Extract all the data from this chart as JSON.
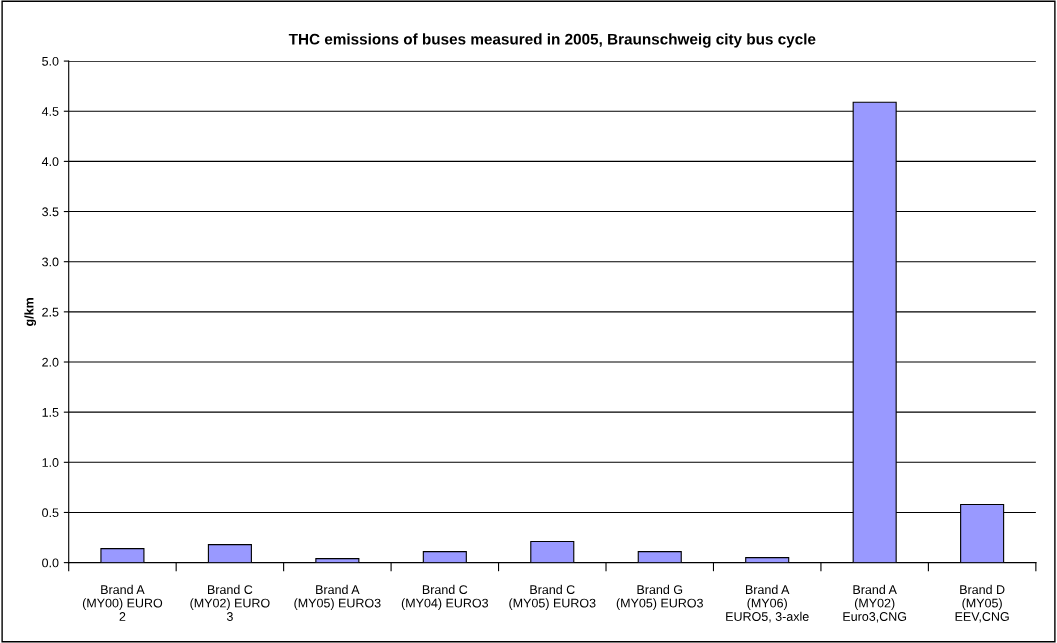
{
  "chart_data": {
    "type": "bar",
    "title": "THC emissions of buses measured in 2005, Braunschweig city bus cycle",
    "ylabel": "g/km",
    "categories": [
      "Brand A\n(MY00) EURO\n2",
      "Brand C\n(MY02) EURO\n3",
      "Brand A\n(MY05) EURO3",
      "Brand C\n(MY04) EURO3",
      "Brand C\n(MY05) EURO3",
      "Brand G\n(MY05) EURO3",
      "Brand A\n(MY06)\nEURO5, 3-axle",
      "Brand A\n(MY02)\nEuro3,CNG",
      "Brand D\n(MY05)\nEEV,CNG"
    ],
    "values": [
      0.14,
      0.18,
      0.04,
      0.11,
      0.21,
      0.11,
      0.05,
      4.59,
      0.58
    ],
    "color": "#9999ff",
    "ylim": [
      0,
      5
    ],
    "yticks": [
      {
        "value": 0,
        "label": "0.0"
      },
      {
        "value": 0.5,
        "label": "0.5"
      },
      {
        "value": 1,
        "label": "1.0"
      },
      {
        "value": 1.5,
        "label": "1.5"
      },
      {
        "value": 2,
        "label": "2.0"
      },
      {
        "value": 2.5,
        "label": "2.5"
      },
      {
        "value": 3,
        "label": "3.0"
      },
      {
        "value": 3.5,
        "label": "3.5"
      },
      {
        "value": 4,
        "label": "4.0"
      },
      {
        "value": 4.5,
        "label": "4.5"
      },
      {
        "value": 5,
        "label": "5.0"
      }
    ],
    "grid": "y"
  }
}
